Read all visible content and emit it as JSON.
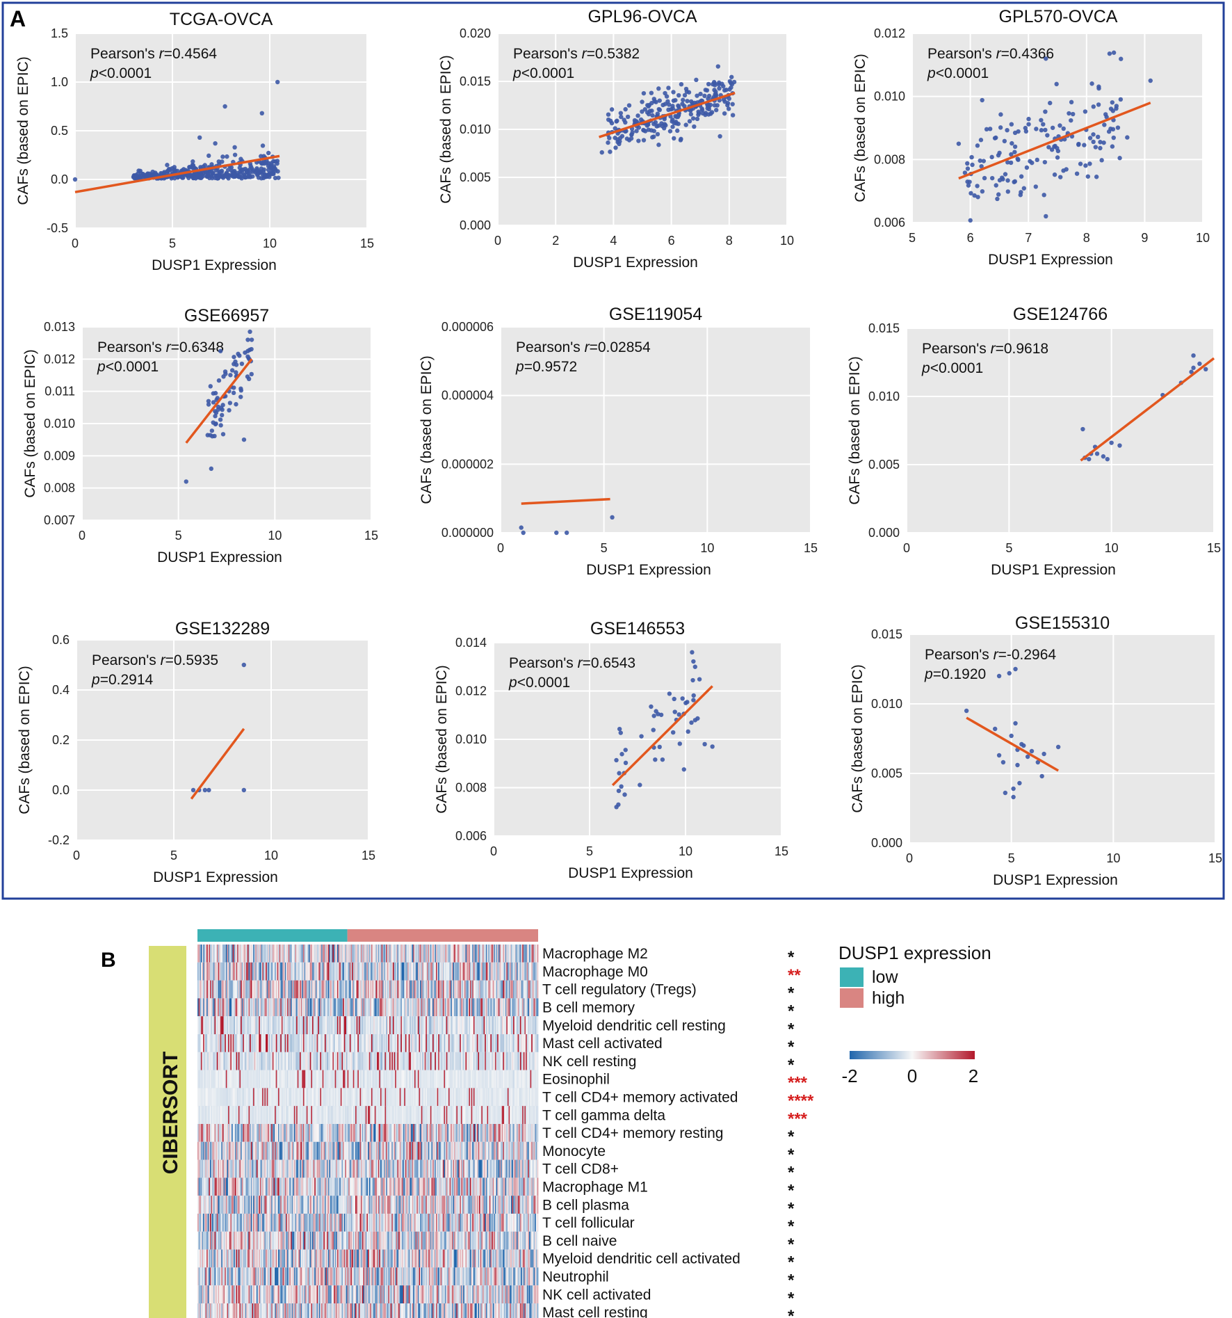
{
  "panel_a": {
    "label": "A",
    "xlabel": "DUSP1 Expression",
    "ylabel": "CAFs (based on EPIC)",
    "stat_prefix": "Pearson's ",
    "stat_r": "r",
    "stat_p": "p"
  },
  "chart_data": [
    {
      "type": "scatter",
      "title": "TCGA-OVCA",
      "r_value": "=0.4564",
      "p_value": "<0.0001",
      "xlabel": "DUSP1 Expression",
      "ylabel": "CAFs (based on EPIC)",
      "xlim": [
        0,
        15
      ],
      "ylim": [
        -0.5,
        1.5
      ],
      "xticks": [
        0,
        5,
        10,
        15
      ],
      "yticks": [
        -0.5,
        0.0,
        0.5,
        1.0,
        1.5
      ],
      "xtick_labels": [
        "0",
        "5",
        "10",
        "15"
      ],
      "ytick_labels": [
        "-0.5",
        "0.0",
        "0.5",
        "1.0",
        "1.5"
      ],
      "grid": true,
      "fit_line": [
        [
          0,
          -0.13
        ],
        [
          10.5,
          0.24
        ]
      ],
      "n_points": 380,
      "x_range_points": [
        3,
        10.5
      ],
      "y_center": 0.03,
      "y_spread": 0.06,
      "highlight_points": [
        [
          0,
          0.0
        ],
        [
          10.4,
          1.0
        ],
        [
          7.7,
          0.75
        ],
        [
          9.6,
          0.68
        ],
        [
          7.2,
          0.37
        ],
        [
          8.2,
          0.33
        ],
        [
          6.4,
          0.43
        ]
      ]
    },
    {
      "type": "scatter",
      "title": "GPL96-OVCA",
      "r_value": "=0.5382",
      "p_value": "<0.0001",
      "xlabel": "DUSP1 Expression",
      "ylabel": "CAFs (based on EPIC)",
      "xlim": [
        0,
        10
      ],
      "ylim": [
        0,
        0.02
      ],
      "xticks": [
        0,
        2,
        4,
        6,
        8,
        10
      ],
      "yticks": [
        0,
        0.005,
        0.01,
        0.015,
        0.02
      ],
      "xtick_labels": [
        "0",
        "2",
        "4",
        "6",
        "8",
        "10"
      ],
      "ytick_labels": [
        "0.000",
        "0.005",
        "0.010",
        "0.015",
        "0.020"
      ],
      "grid": true,
      "fit_line": [
        [
          3.5,
          0.0092
        ],
        [
          8.2,
          0.0138
        ]
      ],
      "n_points": 260,
      "x_range_points": [
        3.8,
        8.2
      ],
      "y_center": 0.0112,
      "y_spread": 0.0012,
      "highlight_points": [
        [
          3.6,
          0.0076
        ],
        [
          8.1,
          0.0147
        ],
        [
          7.5,
          0.0148
        ],
        [
          8.0,
          0.0132
        ]
      ]
    },
    {
      "type": "scatter",
      "title": "GPL570-OVCA",
      "r_value": "=0.4366",
      "p_value": "<0.0001",
      "xlabel": "DUSP1 Expression",
      "ylabel": "CAFs (based on EPIC)",
      "xlim": [
        5,
        10
      ],
      "ylim": [
        0.006,
        0.012
      ],
      "xticks": [
        5,
        6,
        7,
        8,
        9,
        10
      ],
      "yticks": [
        0.006,
        0.008,
        0.01,
        0.012
      ],
      "xtick_labels": [
        "5",
        "6",
        "7",
        "8",
        "9",
        "10"
      ],
      "ytick_labels": [
        "0.006",
        "0.008",
        "0.010",
        "0.012"
      ],
      "grid": true,
      "fit_line": [
        [
          5.8,
          0.0074
        ],
        [
          9.1,
          0.0098
        ]
      ],
      "n_points": 150,
      "x_range_points": [
        5.9,
        8.6
      ],
      "y_center": 0.0084,
      "y_spread": 0.0008,
      "highlight_points": [
        [
          9.1,
          0.0105
        ],
        [
          7.3,
          0.0112
        ],
        [
          8.7,
          0.0087
        ],
        [
          5.8,
          0.0085
        ],
        [
          7.3,
          0.0062
        ]
      ]
    },
    {
      "type": "scatter",
      "title": "GSE66957",
      "r_value": "=0.6348",
      "p_value": "<0.0001",
      "xlabel": "DUSP1 Expression",
      "ylabel": "CAFs (based on EPIC)",
      "xlim": [
        0,
        15
      ],
      "ylim": [
        0.007,
        0.013
      ],
      "xticks": [
        0,
        5,
        10,
        15
      ],
      "yticks": [
        0.007,
        0.008,
        0.009,
        0.01,
        0.011,
        0.012,
        0.013
      ],
      "xtick_labels": [
        "0",
        "5",
        "10",
        "15"
      ],
      "ytick_labels": [
        "0.007",
        "0.008",
        "0.009",
        "0.010",
        "0.011",
        "0.012",
        "0.013"
      ],
      "grid": true,
      "fit_line": [
        [
          5.4,
          0.0094
        ],
        [
          8.8,
          0.012
        ]
      ],
      "n_points": 70,
      "x_range_points": [
        6.3,
        8.8
      ],
      "y_center": 0.0111,
      "y_spread": 0.0006,
      "highlight_points": [
        [
          5.4,
          0.0082
        ],
        [
          6.7,
          0.0086
        ],
        [
          8.4,
          0.0095
        ],
        [
          8.8,
          0.0126
        ],
        [
          8.6,
          0.0126
        ]
      ]
    },
    {
      "type": "scatter",
      "title": "GSE119054",
      "r_value": "=0.02854",
      "p_value": "=0.9572",
      "xlabel": "DUSP1 Expression",
      "ylabel": "CAFs (based on EPIC)",
      "xlim": [
        0,
        15
      ],
      "ylim": [
        0,
        6e-06
      ],
      "xticks": [
        0,
        5,
        10,
        15
      ],
      "yticks": [
        0,
        2e-06,
        4e-06,
        6e-06
      ],
      "xtick_labels": [
        "0",
        "5",
        "10",
        "15"
      ],
      "ytick_labels": [
        "0.000000",
        "0.000002",
        "0.000004",
        "0.000006"
      ],
      "grid": true,
      "fit_line": [
        [
          1.0,
          8.5e-07
        ],
        [
          5.3,
          9.8e-07
        ]
      ],
      "n_points": 0,
      "x_range_points": [
        1,
        5
      ],
      "y_center": 0,
      "y_spread": 0,
      "highlight_points": [
        [
          1.0,
          1.5e-07
        ],
        [
          1.1,
          0.0
        ],
        [
          2.7,
          0.0
        ],
        [
          3.2,
          0.0
        ],
        [
          5.4,
          4.5e-07
        ]
      ]
    },
    {
      "type": "scatter",
      "title": "GSE124766",
      "r_value": "=0.9618",
      "p_value": "<0.0001",
      "xlabel": "DUSP1 Expression",
      "ylabel": "CAFs (based on EPIC)",
      "xlim": [
        0,
        15
      ],
      "ylim": [
        0,
        0.015
      ],
      "xticks": [
        0,
        5,
        10,
        15
      ],
      "yticks": [
        0,
        0.005,
        0.01,
        0.015
      ],
      "xtick_labels": [
        "0",
        "5",
        "10",
        "15"
      ],
      "ytick_labels": [
        "0.000",
        "0.005",
        "0.010",
        "0.015"
      ],
      "grid": true,
      "fit_line": [
        [
          8.5,
          0.0053
        ],
        [
          15,
          0.0128
        ]
      ],
      "n_points": 0,
      "x_range_points": [
        8.5,
        15
      ],
      "y_center": 0.008,
      "y_spread": 0,
      "highlight_points": [
        [
          8.6,
          0.0076
        ],
        [
          8.7,
          0.0055
        ],
        [
          8.9,
          0.0054
        ],
        [
          9.0,
          0.0058
        ],
        [
          9.2,
          0.0063
        ],
        [
          9.3,
          0.0058
        ],
        [
          9.6,
          0.0056
        ],
        [
          9.8,
          0.0054
        ],
        [
          10.0,
          0.0066
        ],
        [
          10.4,
          0.0064
        ],
        [
          12.5,
          0.0101
        ],
        [
          13.4,
          0.011
        ],
        [
          13.9,
          0.0118
        ],
        [
          14.0,
          0.013
        ],
        [
          14.3,
          0.0124
        ],
        [
          14.6,
          0.012
        ],
        [
          14.0,
          0.0121
        ]
      ]
    },
    {
      "type": "scatter",
      "title": "GSE132289",
      "r_value": "=0.5935",
      "p_value": "=0.2914",
      "xlabel": "DUSP1 Expression",
      "ylabel": "CAFs (based on EPIC)",
      "xlim": [
        0,
        15
      ],
      "ylim": [
        -0.2,
        0.6
      ],
      "xticks": [
        0,
        5,
        10,
        15
      ],
      "yticks": [
        -0.2,
        0.0,
        0.2,
        0.4,
        0.6
      ],
      "xtick_labels": [
        "0",
        "5",
        "10",
        "15"
      ],
      "ytick_labels": [
        "-0.2",
        "0.0",
        "0.2",
        "0.4",
        "0.6"
      ],
      "grid": true,
      "fit_line": [
        [
          5.9,
          -0.035
        ],
        [
          8.6,
          0.245
        ]
      ],
      "n_points": 0,
      "x_range_points": [
        6,
        9
      ],
      "y_center": 0,
      "y_spread": 0,
      "highlight_points": [
        [
          6.0,
          0.0
        ],
        [
          6.3,
          0.0
        ],
        [
          6.6,
          0.0
        ],
        [
          6.8,
          0.0
        ],
        [
          8.6,
          0.5
        ],
        [
          8.6,
          0.0
        ]
      ]
    },
    {
      "type": "scatter",
      "title": "GSE146553",
      "r_value": "=0.6543",
      "p_value": "<0.0001",
      "xlabel": "DUSP1 Expression",
      "ylabel": "CAFs (based on EPIC)",
      "xlim": [
        0,
        15
      ],
      "ylim": [
        0.006,
        0.014
      ],
      "xticks": [
        0,
        5,
        10,
        15
      ],
      "yticks": [
        0.006,
        0.008,
        0.01,
        0.012,
        0.014
      ],
      "xtick_labels": [
        "0",
        "5",
        "10",
        "15"
      ],
      "ytick_labels": [
        "0.006",
        "0.008",
        "0.010",
        "0.012",
        "0.014"
      ],
      "grid": true,
      "fit_line": [
        [
          6.2,
          0.0081
        ],
        [
          11.4,
          0.0122
        ]
      ],
      "n_points": 45,
      "x_range_points": [
        6.3,
        11.2
      ],
      "y_center": 0.0098,
      "y_spread": 0.0011,
      "highlight_points": [
        [
          6.4,
          0.0072
        ],
        [
          6.5,
          0.0073
        ],
        [
          10.5,
          0.013
        ],
        [
          11.4,
          0.0097
        ],
        [
          11.0,
          0.0098
        ]
      ]
    },
    {
      "type": "scatter",
      "title": "GSE155310",
      "r_value": "=-0.2964",
      "p_value": "=0.1920",
      "xlabel": "DUSP1 Expression",
      "ylabel": "CAFs (based on EPIC)",
      "xlim": [
        0,
        15
      ],
      "ylim": [
        0,
        0.015
      ],
      "xticks": [
        0,
        5,
        10,
        15
      ],
      "yticks": [
        0,
        0.005,
        0.01,
        0.015
      ],
      "xtick_labels": [
        "0",
        "5",
        "10",
        "15"
      ],
      "ytick_labels": [
        "0.000",
        "0.005",
        "0.010",
        "0.015"
      ],
      "grid": true,
      "fit_line": [
        [
          2.8,
          0.009
        ],
        [
          7.3,
          0.0052
        ]
      ],
      "n_points": 0,
      "x_range_points": [
        3,
        7
      ],
      "y_center": 0.006,
      "y_spread": 0,
      "highlight_points": [
        [
          2.8,
          0.0095
        ],
        [
          4.2,
          0.0082
        ],
        [
          4.4,
          0.0063
        ],
        [
          4.6,
          0.0058
        ],
        [
          4.7,
          0.0036
        ],
        [
          4.9,
          0.0122
        ],
        [
          5.0,
          0.0077
        ],
        [
          5.1,
          0.0039
        ],
        [
          5.1,
          0.0033
        ],
        [
          5.2,
          0.0125
        ],
        [
          5.2,
          0.0086
        ],
        [
          5.3,
          0.0067
        ],
        [
          5.3,
          0.0056
        ],
        [
          5.4,
          0.0043
        ],
        [
          5.5,
          0.0071
        ],
        [
          5.6,
          0.007
        ],
        [
          5.8,
          0.0062
        ],
        [
          6.0,
          0.0066
        ],
        [
          6.3,
          0.0058
        ],
        [
          6.5,
          0.0048
        ],
        [
          6.6,
          0.0064
        ],
        [
          7.3,
          0.0069
        ],
        [
          4.4,
          0.012
        ]
      ]
    },
    {
      "type": "heatmap",
      "panel_label": "B",
      "method_label": "CIBERSORT",
      "rows": [
        "Macrophage M2",
        "Macrophage M0",
        "T cell regulatory (Tregs)",
        "B cell memory",
        "Myeloid dendritic cell resting",
        "Mast cell activated",
        "NK cell resting",
        "Eosinophil",
        "T cell CD4+ memory activated",
        "T cell gamma delta",
        "T cell CD4+ memory resting",
        "Monocyte",
        "T cell CD8+",
        "Macrophage M1",
        "B cell plasma",
        "T cell follicular",
        "B cell naive",
        "Myeloid dendritic cell activated",
        "Neutrophil",
        "NK cell activated",
        "Mast cell resting"
      ],
      "significance": [
        "*",
        "**",
        "*",
        "*",
        "*",
        "*",
        "*",
        "***",
        "****",
        "***",
        "*",
        "*",
        "*",
        "*",
        "*",
        "*",
        "*",
        "*",
        "*",
        "*",
        "*"
      ],
      "significance_red": [
        false,
        true,
        false,
        false,
        false,
        false,
        false,
        true,
        true,
        true,
        false,
        false,
        false,
        false,
        false,
        false,
        false,
        false,
        false,
        false,
        false
      ],
      "row_profile": [
        "mixed",
        "mixed",
        "mixed",
        "mixed",
        "light",
        "light",
        "light",
        "sparse",
        "sparse",
        "sparse",
        "mixed",
        "mixed",
        "mixed",
        "mixed",
        "mixed",
        "mixed",
        "mixed",
        "mixed",
        "mixed",
        "mixed",
        "mixed"
      ],
      "groups": [
        {
          "name": "low",
          "fraction": 0.44,
          "color": "#3cb2b5"
        },
        {
          "name": "high",
          "fraction": 0.56,
          "color": "#d98582"
        }
      ],
      "n_columns": 300,
      "legend_title": "DUSP1 expression",
      "scale_min": -2,
      "scale_mid": 0,
      "scale_max": 2,
      "scale_labels": [
        "-2",
        "0",
        "2"
      ],
      "colors": {
        "low": "#2166ac",
        "mid": "#f7f7f7",
        "high": "#b2182b",
        "sidebar": "#d8de74"
      }
    }
  ],
  "colors": {
    "border": "#22409a",
    "panel_bg": "#e8e8e8",
    "point": "#3d59a6",
    "fit": "#e2571e",
    "star_black": "#111111",
    "star_red": "#d62020"
  }
}
